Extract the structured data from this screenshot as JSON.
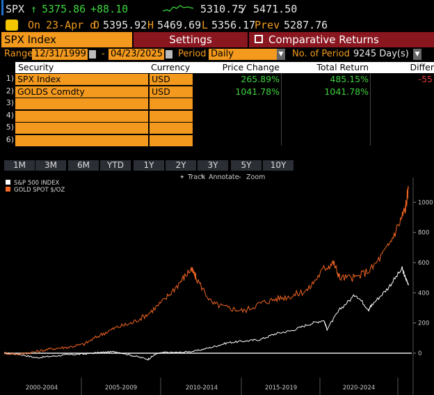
{
  "header": {
    "ticker": "SPX",
    "arrow": "↑",
    "last": "5375.86",
    "change": "+88.10",
    "range_low": "5310.75",
    "range_high": "/ 5471.50",
    "on_label": "On",
    "date": "23-Apr d",
    "open_label": "O",
    "open": "5395.92",
    "high_label": "H",
    "high": "5469.69",
    "low_label": "L",
    "low": "5356.17",
    "prev_label": "Prev",
    "prev": "5287.76"
  },
  "titlebar": {
    "security": "SPX Index",
    "settings": "Settings",
    "comparative": "Comparative Returns"
  },
  "range": {
    "label": "Range",
    "start": "12/31/1999",
    "sep": "-",
    "end": "04/23/2025",
    "period_label": "Period",
    "period": "Daily",
    "nperiod_label": "No. of Period",
    "nperiod": "9245 Day(s)"
  },
  "table": {
    "headers": [
      "Security",
      "Currency",
      "Price Change",
      "Total Return",
      "Differ"
    ],
    "rows": [
      {
        "n": "1)",
        "security": "SPX Index",
        "currency": "USD",
        "price_change": "265.89%",
        "total_return": "485.15%",
        "diff": "-55"
      },
      {
        "n": "2)",
        "security": "GOLDS Comdty",
        "currency": "USD",
        "price_change": "1041.78%",
        "total_return": "1041.78%",
        "diff": ""
      },
      {
        "n": "3)",
        "security": "",
        "currency": "",
        "price_change": "",
        "total_return": "",
        "diff": ""
      },
      {
        "n": "4)",
        "security": "",
        "currency": "",
        "price_change": "",
        "total_return": "",
        "diff": ""
      },
      {
        "n": "5)",
        "security": "",
        "currency": "",
        "price_change": "",
        "total_return": "",
        "diff": ""
      },
      {
        "n": "6)",
        "security": "",
        "currency": "",
        "price_change": "",
        "total_return": "",
        "diff": ""
      }
    ]
  },
  "periods": [
    "1M",
    "3M",
    "6M",
    "YTD",
    "1Y",
    "2Y",
    "3Y",
    "5Y",
    "10Y"
  ],
  "toolbar": {
    "track": "Track",
    "annotate": "Annotate",
    "zoom": "Zoom"
  },
  "colors": {
    "spx": "#ffffff",
    "gold": "#f26522",
    "accent": "#f39a1e",
    "bar": "#8a1620",
    "positive": "#3fd63f",
    "negative": "#e23b3b"
  },
  "chart_data": {
    "type": "line",
    "title": "",
    "ylabel": "",
    "ylim": [
      -100,
      1100
    ],
    "yticks": [
      0,
      200,
      400,
      600,
      800,
      1000
    ],
    "x_categories": [
      "2000-2004",
      "2005-2009",
      "2010-2014",
      "2015-2019",
      "2020-2024"
    ],
    "series": [
      {
        "name": "S&P 500 INDEX",
        "x": [
          2000,
          2001,
          2002,
          2003,
          2004,
          2005,
          2006,
          2007,
          2008,
          2009,
          2009.5,
          2010,
          2011,
          2012,
          2013,
          2014,
          2015,
          2016,
          2017,
          2018,
          2019,
          2020,
          2020.2,
          2021,
          2022,
          2022.8,
          2023,
          2024,
          2024.9,
          2025.1,
          2025.3
        ],
        "y": [
          0,
          -8,
          -30,
          -20,
          -10,
          -5,
          5,
          10,
          -15,
          -40,
          -5,
          5,
          5,
          15,
          40,
          70,
          80,
          90,
          130,
          150,
          190,
          220,
          160,
          290,
          390,
          290,
          320,
          430,
          560,
          500,
          460
        ]
      },
      {
        "name": "GOLD SPOT $/OZ",
        "x": [
          2000,
          2001,
          2002,
          2003,
          2004,
          2005,
          2006,
          2007,
          2008,
          2009,
          2010,
          2011,
          2011.7,
          2012,
          2013,
          2014,
          2015,
          2016,
          2017,
          2018,
          2019,
          2020,
          2020.6,
          2021,
          2022,
          2023,
          2024,
          2024.8,
          2025.1,
          2025.3
        ],
        "y": [
          0,
          -5,
          10,
          30,
          40,
          60,
          120,
          170,
          200,
          260,
          350,
          470,
          560,
          500,
          330,
          300,
          280,
          330,
          360,
          380,
          420,
          560,
          600,
          500,
          500,
          560,
          700,
          880,
          960,
          1090
        ]
      }
    ]
  }
}
